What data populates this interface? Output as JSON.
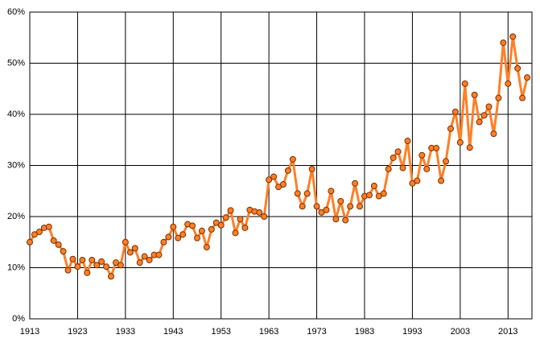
{
  "chart_data": {
    "type": "line",
    "x": [
      1913,
      1914,
      1915,
      1916,
      1917,
      1918,
      1919,
      1920,
      1921,
      1922,
      1923,
      1924,
      1925,
      1926,
      1927,
      1928,
      1929,
      1930,
      1931,
      1932,
      1933,
      1934,
      1935,
      1936,
      1937,
      1938,
      1939,
      1940,
      1941,
      1942,
      1943,
      1944,
      1945,
      1946,
      1947,
      1948,
      1949,
      1950,
      1951,
      1952,
      1953,
      1954,
      1955,
      1956,
      1957,
      1958,
      1959,
      1960,
      1961,
      1962,
      1963,
      1964,
      1965,
      1966,
      1967,
      1968,
      1969,
      1970,
      1971,
      1972,
      1973,
      1974,
      1975,
      1976,
      1977,
      1978,
      1979,
      1980,
      1981,
      1982,
      1983,
      1984,
      1985,
      1986,
      1987,
      1988,
      1989,
      1990,
      1991,
      1992,
      1993,
      1994,
      1995,
      1996,
      1997,
      1998,
      1999,
      2000,
      2001,
      2002,
      2003,
      2004,
      2005,
      2006,
      2007,
      2008,
      2009,
      2010,
      2011,
      2012,
      2013,
      2014,
      2015,
      2016,
      2017
    ],
    "series": [
      {
        "color": "#ff7f27",
        "marker_edge": "#7a2e00",
        "values": [
          15,
          16.5,
          17,
          17.8,
          18,
          15.3,
          14.5,
          13.2,
          9.5,
          11.7,
          10.2,
          11.5,
          9,
          11.5,
          10.5,
          11.2,
          10.2,
          8.3,
          11,
          10.5,
          15,
          13,
          13.8,
          11,
          12.2,
          11.5,
          12.5,
          12.5,
          15,
          16,
          18,
          15.8,
          16.5,
          18.5,
          18.2,
          15.8,
          17.2,
          14,
          17.5,
          18.8,
          18.3,
          19.8,
          21.2,
          16.8,
          19.5,
          17.8,
          21.3,
          21,
          20.8,
          20,
          27.2,
          27.8,
          25.8,
          26.3,
          29,
          31.2,
          24.5,
          22,
          24.5,
          29.3,
          22,
          20.8,
          21.3,
          25,
          19.5,
          23,
          19.3,
          22,
          26.5,
          22,
          24,
          24.2,
          26,
          24,
          24.5,
          29.3,
          31.5,
          32.7,
          29.5,
          34.8,
          26.5,
          27,
          32,
          29.3,
          33.4,
          33.4,
          27,
          30.8,
          37.2,
          40.5,
          34.5,
          46,
          33.5,
          43.8,
          38.5,
          39.8,
          41.5,
          36.2,
          43.2,
          54,
          46,
          55.2,
          49,
          43.2,
          47.2
        ]
      }
    ],
    "xlim": [
      1913,
      2018
    ],
    "xticks": [
      1913,
      1923,
      1933,
      1943,
      1953,
      1963,
      1973,
      1983,
      1993,
      2003,
      2013
    ],
    "ylim": [
      0,
      60
    ],
    "yticks": [
      {
        "value": 0,
        "label": "0%"
      },
      {
        "value": 10,
        "label": "10%"
      },
      {
        "value": 20,
        "label": "20%"
      },
      {
        "value": 30,
        "label": "30%"
      },
      {
        "value": 40,
        "label": "40%"
      },
      {
        "value": 50,
        "label": "50%"
      },
      {
        "value": 60,
        "label": "60%"
      }
    ],
    "grid": true
  }
}
